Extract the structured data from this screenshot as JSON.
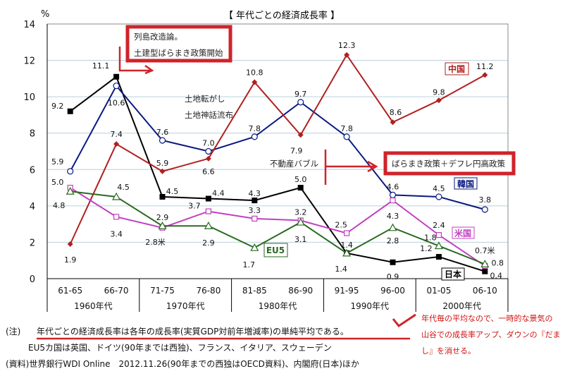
{
  "chart_data": {
    "type": "line",
    "title": "【 年代ごとの経済成長率 】",
    "ylabel": "%",
    "ylim": [
      0,
      14
    ],
    "yticks": [
      0,
      2,
      4,
      6,
      8,
      10,
      12,
      14
    ],
    "grid": true,
    "categories": [
      "61-65",
      "66-70",
      "71-75",
      "76-80",
      "81-85",
      "86-90",
      "91-95",
      "96-00",
      "01-05",
      "06-10"
    ],
    "decades": [
      "1960年代",
      "1970年代",
      "1980年代",
      "1990年代",
      "2000年代"
    ],
    "series": [
      {
        "name": "日本",
        "color": "#000000",
        "marker": "filled-square",
        "values": [
          9.2,
          11.1,
          4.5,
          4.4,
          4.3,
          5.0,
          1.4,
          0.9,
          1.2,
          0.4
        ]
      },
      {
        "name": "韓国",
        "color": "#0a1a80",
        "marker": "open-circle",
        "values": [
          5.9,
          10.6,
          7.6,
          7.0,
          7.8,
          9.7,
          7.8,
          4.6,
          4.5,
          3.8
        ]
      },
      {
        "name": "中国",
        "color": "#b02020",
        "marker": "filled-diamond",
        "values": [
          1.9,
          7.4,
          5.9,
          6.6,
          10.8,
          7.9,
          12.3,
          8.6,
          9.8,
          11.2
        ]
      },
      {
        "name": "米国",
        "color": "#c040c0",
        "marker": "open-square",
        "values": [
          5.0,
          3.4,
          2.8,
          3.7,
          3.3,
          3.2,
          2.5,
          4.3,
          2.4,
          0.7
        ]
      },
      {
        "name": "EU5",
        "color": "#2a6a20",
        "marker": "open-triangle",
        "values": [
          4.8,
          4.5,
          2.9,
          2.9,
          1.7,
          3.1,
          1.4,
          2.8,
          1.8,
          0.8
        ]
      }
    ],
    "us_mark": "米",
    "annotations": {
      "box1": [
        "列島改造論。",
        "土建型ばらまき政策開始"
      ],
      "land": [
        "土地転がし",
        "土地神話流布"
      ],
      "bubble": "不動産バブル",
      "box2": "ばらまき政策＋デフレ円高政策"
    }
  },
  "notes": {
    "note_prefix": "(注)",
    "note": "年代ごとの経済成長率は各年の成長率(実質GDP対前年増減率)の単純平均である。",
    "eu5": "EU5カ国は英国、ドイツ(90年までは西独)、フランス、イタリア、スウェーデン",
    "source": "(資料)世界銀行WDI Online　2012.11.26(90年までの西独はOECD資料)、内閣府(日本)ほか",
    "red_comment": [
      "年代毎の平均なので、一時的な景気の",
      "山谷での成長率アップ、ダウンの『だま",
      "し』を消せる。"
    ]
  }
}
